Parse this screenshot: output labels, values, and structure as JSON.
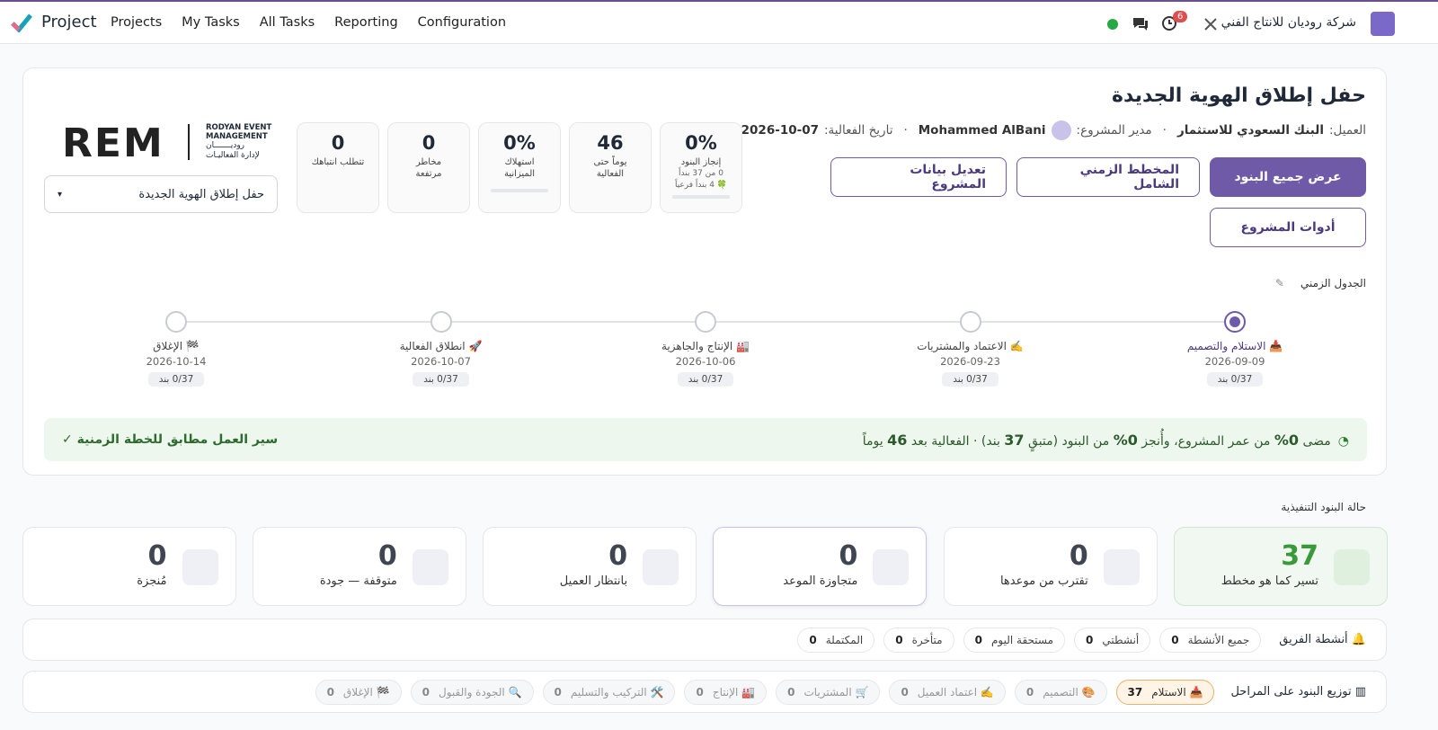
{
  "nav": {
    "app": "Project",
    "menu": [
      "Projects",
      "My Tasks",
      "All Tasks",
      "Reporting",
      "Configuration"
    ],
    "badge": "6",
    "company": "شركة روديان للانتاج الفني"
  },
  "header": {
    "title": "حفل إطلاق الهوية الجديدة",
    "client_label": "العميل:",
    "client": "البنك السعودي للاستثمار",
    "manager_label": "مدير المشروع:",
    "manager": "Mohammed AlBani",
    "date_label": "تاريخ الفعالية:",
    "date": "2026-10-07"
  },
  "buttons": [
    "عرض جميع البنود",
    "المخطط الزمني الشامل",
    "تعديل بيانات المشروع",
    "أدوات المشروع"
  ],
  "stats": [
    {
      "value": "0%",
      "label": "إنجاز البنود",
      "sub": [
        "0 من 37 بنداً",
        "🍀 4 بنداً فرعياً"
      ]
    },
    {
      "value": "46",
      "label": "يوماً حتى الفعالية"
    },
    {
      "value": "0%",
      "label": "استهلاك الميزانية"
    },
    {
      "value": "0",
      "label": "مخاطر مرتفعة"
    },
    {
      "value": "0",
      "label": "تتطلب انتباهك"
    }
  ],
  "logo": {
    "mark": "REM",
    "en": [
      "RODYAN EVENT",
      "MANAGEMENT"
    ],
    "ar": [
      "روديـــــــان",
      "لإدارة الفعاليـات"
    ]
  },
  "project_select": "حفل إطلاق الهوية الجديدة",
  "timeline": {
    "title": "الجدول الزمني",
    "stages": [
      {
        "name": "📥 الاستلام والتصميم",
        "date": "2026-09-09",
        "count": "0/37 بند"
      },
      {
        "name": "✍️ الاعتماد والمشتريات",
        "date": "2026-09-23",
        "count": "0/37 بند"
      },
      {
        "name": "🏭 الإنتاج والجاهزية",
        "date": "2026-10-06",
        "count": "0/37 بند"
      },
      {
        "name": "🚀 انطلاق الفعالية",
        "date": "2026-10-07",
        "count": "0/37 بند"
      },
      {
        "name": "🏁 الإغلاق",
        "date": "2026-10-14",
        "count": "0/37 بند"
      }
    ]
  },
  "progress": {
    "parts": [
      "مضى ",
      "0%",
      " من عمر المشروع، وأُنجز ",
      "0%",
      " من البنود (متبقٍ ",
      "37",
      " بند) · الفعالية بعد ",
      "46",
      " يوماً"
    ],
    "verdict": "سير العمل مطابق للخطة الزمنية ✓"
  },
  "status": {
    "title": "حالة البنود التنفيذية",
    "cards": [
      {
        "value": "37",
        "label": "تسير كما هو مخطط"
      },
      {
        "value": "0",
        "label": "تقترب من موعدها"
      },
      {
        "value": "0",
        "label": "متجاوزة الموعد"
      },
      {
        "value": "0",
        "label": "بانتظار العميل"
      },
      {
        "value": "0",
        "label": "متوقفة — جودة"
      },
      {
        "value": "0",
        "label": "مُنجزة"
      }
    ]
  },
  "activities": {
    "title": "أنشطة الفريق",
    "filters": [
      {
        "label": "جميع الأنشطة",
        "count": "0"
      },
      {
        "label": "أنشطتي",
        "count": "0"
      },
      {
        "label": "مستحقة اليوم",
        "count": "0"
      },
      {
        "label": "متأخرة",
        "count": "0"
      },
      {
        "label": "المكتملة",
        "count": "0"
      }
    ]
  },
  "distribution": {
    "title": "توزيع البنود على المراحل",
    "chips": [
      {
        "label": "📥 الاستلام",
        "count": "37"
      },
      {
        "label": "🎨 التصميم",
        "count": "0"
      },
      {
        "label": "✍️ اعتماد العميل",
        "count": "0"
      },
      {
        "label": "🛒 المشتريات",
        "count": "0"
      },
      {
        "label": "🏭 الإنتاج",
        "count": "0"
      },
      {
        "label": "🛠️ التركيب والتسليم",
        "count": "0"
      },
      {
        "label": "🔍 الجودة والقبول",
        "count": "0"
      },
      {
        "label": "🏁 الإغلاق",
        "count": "0"
      }
    ]
  }
}
